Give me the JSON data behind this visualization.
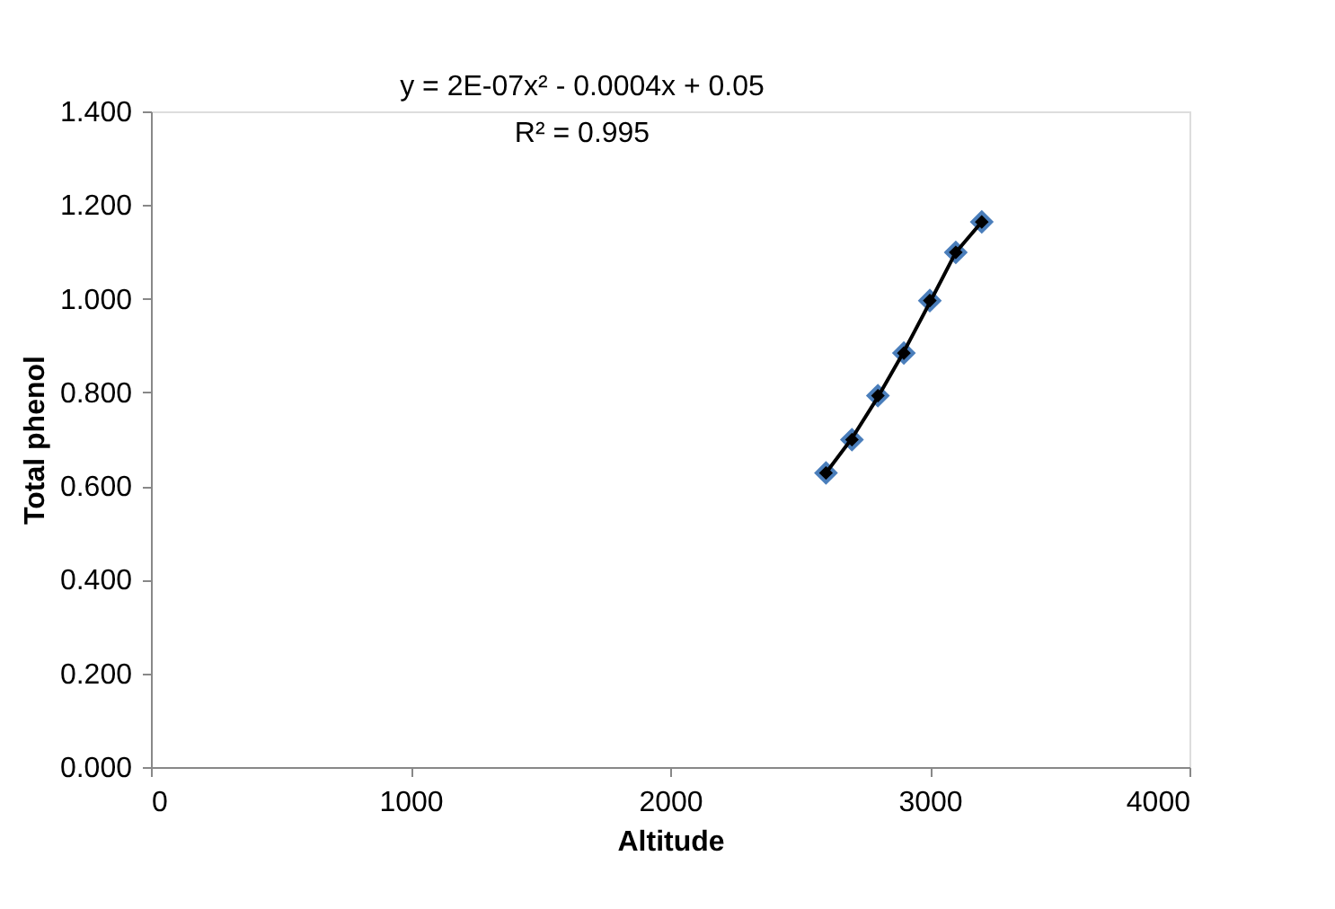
{
  "chart_data": {
    "type": "scatter",
    "xlabel": "Altitude",
    "ylabel": "Total phenol",
    "x": [
      2600,
      2700,
      2800,
      2900,
      3000,
      3100,
      3200
    ],
    "series": [
      {
        "color": "#000000",
        "values": [
          0.628,
          0.699,
          0.793,
          0.884,
          0.996,
          1.099,
          1.164
        ]
      },
      {
        "type": "line",
        "color": "#000000",
        "x": [
          2600,
          2700,
          2800,
          2900,
          3000,
          3100,
          3200
        ],
        "values": [
          0.628,
          0.702,
          0.79,
          0.887,
          0.992,
          1.099,
          1.164
        ],
        "marker": "none"
      }
    ],
    "marker": "diamond",
    "grid": false,
    "xlim": [
      0,
      4000
    ],
    "xticks": [
      0,
      1000,
      2000,
      3000,
      4000
    ],
    "ylim": [
      0,
      1.4
    ],
    "yticks": [
      {
        "value": 0,
        "label": "0.000"
      },
      {
        "value": 0.2,
        "label": "0.200"
      },
      {
        "value": 0.4,
        "label": "0.400"
      },
      {
        "value": 0.6,
        "label": "0.600"
      },
      {
        "value": 0.8,
        "label": "0.800"
      },
      {
        "value": 1.0,
        "label": "1.000"
      },
      {
        "value": 1.2,
        "label": "1.200"
      },
      {
        "value": 1.4,
        "label": "1.400"
      }
    ],
    "annotations": [
      "y = 2E-07x² - 0.0004x + 0.05",
      "R² = 0.995"
    ]
  }
}
